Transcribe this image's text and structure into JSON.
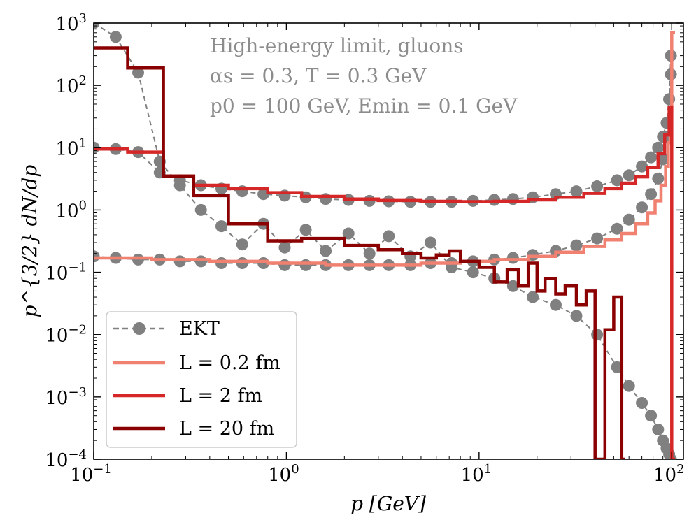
{
  "chart_data": {
    "type": "line",
    "xscale": "log",
    "yscale": "log",
    "xlim": [
      0.1,
      115
    ],
    "ylim": [
      0.0001,
      1000
    ],
    "xlabel": "p [GeV]",
    "ylabel": "p^{3/2} dN/dp",
    "x_ticks": [
      {
        "value": 0.1,
        "base": "10",
        "exp": "−1"
      },
      {
        "value": 1,
        "base": "10",
        "exp": "0"
      },
      {
        "value": 10,
        "base": "10",
        "exp": "1"
      },
      {
        "value": 100,
        "base": "10",
        "exp": "2"
      }
    ],
    "y_ticks": [
      {
        "value": 0.0001,
        "base": "10",
        "exp": "−4"
      },
      {
        "value": 0.001,
        "base": "10",
        "exp": "−3"
      },
      {
        "value": 0.01,
        "base": "10",
        "exp": "−2"
      },
      {
        "value": 0.1,
        "base": "10",
        "exp": "−1"
      },
      {
        "value": 1,
        "base": "10",
        "exp": "0"
      },
      {
        "value": 10,
        "base": "10",
        "exp": "1"
      },
      {
        "value": 100,
        "base": "10",
        "exp": "2"
      },
      {
        "value": 1000,
        "base": "10",
        "exp": "3"
      }
    ],
    "annotations": [
      "High-energy limit, gluons",
      "αs = 0.3, T = 0.3 GeV",
      "p0 = 100 GeV, Emin = 0.1 GeV"
    ],
    "legend": {
      "placement": "lower-left",
      "entries": [
        {
          "label": "EKT",
          "style": "dashed-marker",
          "color": "#808080"
        },
        {
          "label": "L = 0.2 fm",
          "style": "line",
          "color": "#f08070"
        },
        {
          "label": "L = 2 fm",
          "style": "line",
          "color": "#d62728"
        },
        {
          "label": "L = 20 fm",
          "style": "line",
          "color": "#8b0000"
        }
      ]
    },
    "series": [
      {
        "name": "EKT (L = 0.2 fm)",
        "type": "scatter-dashed",
        "color": "#808080",
        "x": [
          0.1,
          0.13,
          0.17,
          0.22,
          0.28,
          0.36,
          0.46,
          0.59,
          0.76,
          0.98,
          1.26,
          1.6,
          2.1,
          2.7,
          3.4,
          4.4,
          5.6,
          7.2,
          9.3,
          12,
          15,
          19,
          25,
          32,
          41,
          52,
          60,
          70,
          78,
          85,
          90,
          94,
          97,
          99
        ],
        "y": [
          0.18,
          0.17,
          0.16,
          0.16,
          0.15,
          0.15,
          0.14,
          0.14,
          0.14,
          0.13,
          0.13,
          0.13,
          0.13,
          0.13,
          0.13,
          0.13,
          0.14,
          0.14,
          0.15,
          0.16,
          0.17,
          0.19,
          0.22,
          0.27,
          0.35,
          0.5,
          0.7,
          1.1,
          1.8,
          3.2,
          6.5,
          15,
          60,
          300
        ]
      },
      {
        "name": "EKT (L = 2 fm)",
        "type": "scatter-dashed",
        "color": "#808080",
        "x": [
          0.1,
          0.13,
          0.17,
          0.22,
          0.28,
          0.36,
          0.46,
          0.59,
          0.76,
          0.98,
          1.26,
          1.6,
          2.1,
          2.7,
          3.4,
          4.4,
          5.6,
          7.2,
          9.3,
          12,
          15,
          19,
          25,
          32,
          41,
          52,
          60,
          70,
          78,
          85,
          90,
          94,
          97,
          99
        ],
        "y": [
          10,
          9.5,
          8.5,
          4,
          3,
          2.5,
          2.2,
          2.0,
          1.8,
          1.7,
          1.6,
          1.5,
          1.45,
          1.4,
          1.38,
          1.35,
          1.35,
          1.35,
          1.4,
          1.45,
          1.5,
          1.6,
          1.8,
          2.0,
          2.4,
          3.0,
          3.6,
          5,
          7,
          10,
          15,
          25,
          60,
          150
        ]
      },
      {
        "name": "EKT (L = 20 fm)",
        "type": "scatter-dashed",
        "color": "#808080",
        "x": [
          0.1,
          0.13,
          0.17,
          0.22,
          0.28,
          0.36,
          0.46,
          0.59,
          0.76,
          0.98,
          1.26,
          1.6,
          2.1,
          2.7,
          3.4,
          4.4,
          5.6,
          7.2,
          9.3,
          12,
          15,
          19,
          25,
          32,
          41,
          52,
          60,
          70,
          78,
          85,
          90,
          94,
          97,
          99
        ],
        "y": [
          1000,
          600,
          160,
          6,
          2.5,
          1.0,
          0.55,
          0.28,
          0.6,
          0.25,
          0.48,
          0.22,
          0.42,
          0.2,
          0.38,
          0.18,
          0.3,
          0.12,
          0.1,
          0.08,
          0.06,
          0.04,
          0.03,
          0.02,
          0.01,
          0.003,
          0.0015,
          0.0008,
          0.0005,
          0.0003,
          0.0002,
          0.00015,
          0.00012,
          0.0001
        ]
      },
      {
        "name": "L = 0.2 fm",
        "type": "step",
        "color": "#f08070",
        "x": [
          0.1,
          0.2,
          0.4,
          0.8,
          1.6,
          3.2,
          5,
          8,
          12,
          18,
          25,
          35,
          45,
          55,
          65,
          75,
          82,
          88,
          93,
          96,
          98,
          100
        ],
        "y": [
          0.17,
          0.16,
          0.15,
          0.14,
          0.13,
          0.13,
          0.14,
          0.15,
          0.16,
          0.18,
          0.21,
          0.26,
          0.33,
          0.42,
          0.6,
          0.9,
          1.4,
          2.5,
          5.0,
          12,
          40,
          700
        ]
      },
      {
        "name": "L = 2 fm",
        "type": "step",
        "color": "#d62728",
        "x": [
          0.1,
          0.15,
          0.23,
          0.33,
          0.5,
          0.8,
          1.2,
          2,
          3,
          5,
          8,
          12,
          18,
          25,
          35,
          45,
          55,
          65,
          75,
          85,
          92,
          97,
          100
        ],
        "y": [
          9.5,
          8.5,
          3.5,
          2.5,
          2.2,
          1.9,
          1.65,
          1.5,
          1.42,
          1.38,
          1.36,
          1.38,
          1.45,
          1.6,
          1.85,
          2.2,
          2.7,
          3.4,
          4.8,
          8,
          16,
          45,
          0.0001
        ]
      },
      {
        "name": "L = 20 fm",
        "type": "step",
        "color": "#8b0000",
        "x": [
          0.1,
          0.15,
          0.23,
          0.33,
          0.5,
          0.8,
          1.2,
          2,
          3,
          4,
          5,
          6,
          7,
          8,
          10,
          12,
          14,
          16,
          18,
          20,
          22,
          25,
          28,
          32,
          36,
          40,
          45,
          50,
          55
        ],
        "y": [
          400,
          190,
          3.5,
          1.7,
          0.6,
          0.32,
          0.35,
          0.27,
          0.23,
          0.2,
          0.17,
          0.19,
          0.22,
          0.15,
          0.12,
          0.07,
          0.11,
          0.06,
          0.14,
          0.05,
          0.08,
          0.045,
          0.06,
          0.03,
          0.05,
          0.0001,
          0.012,
          0.04,
          0.0001
        ]
      }
    ]
  }
}
